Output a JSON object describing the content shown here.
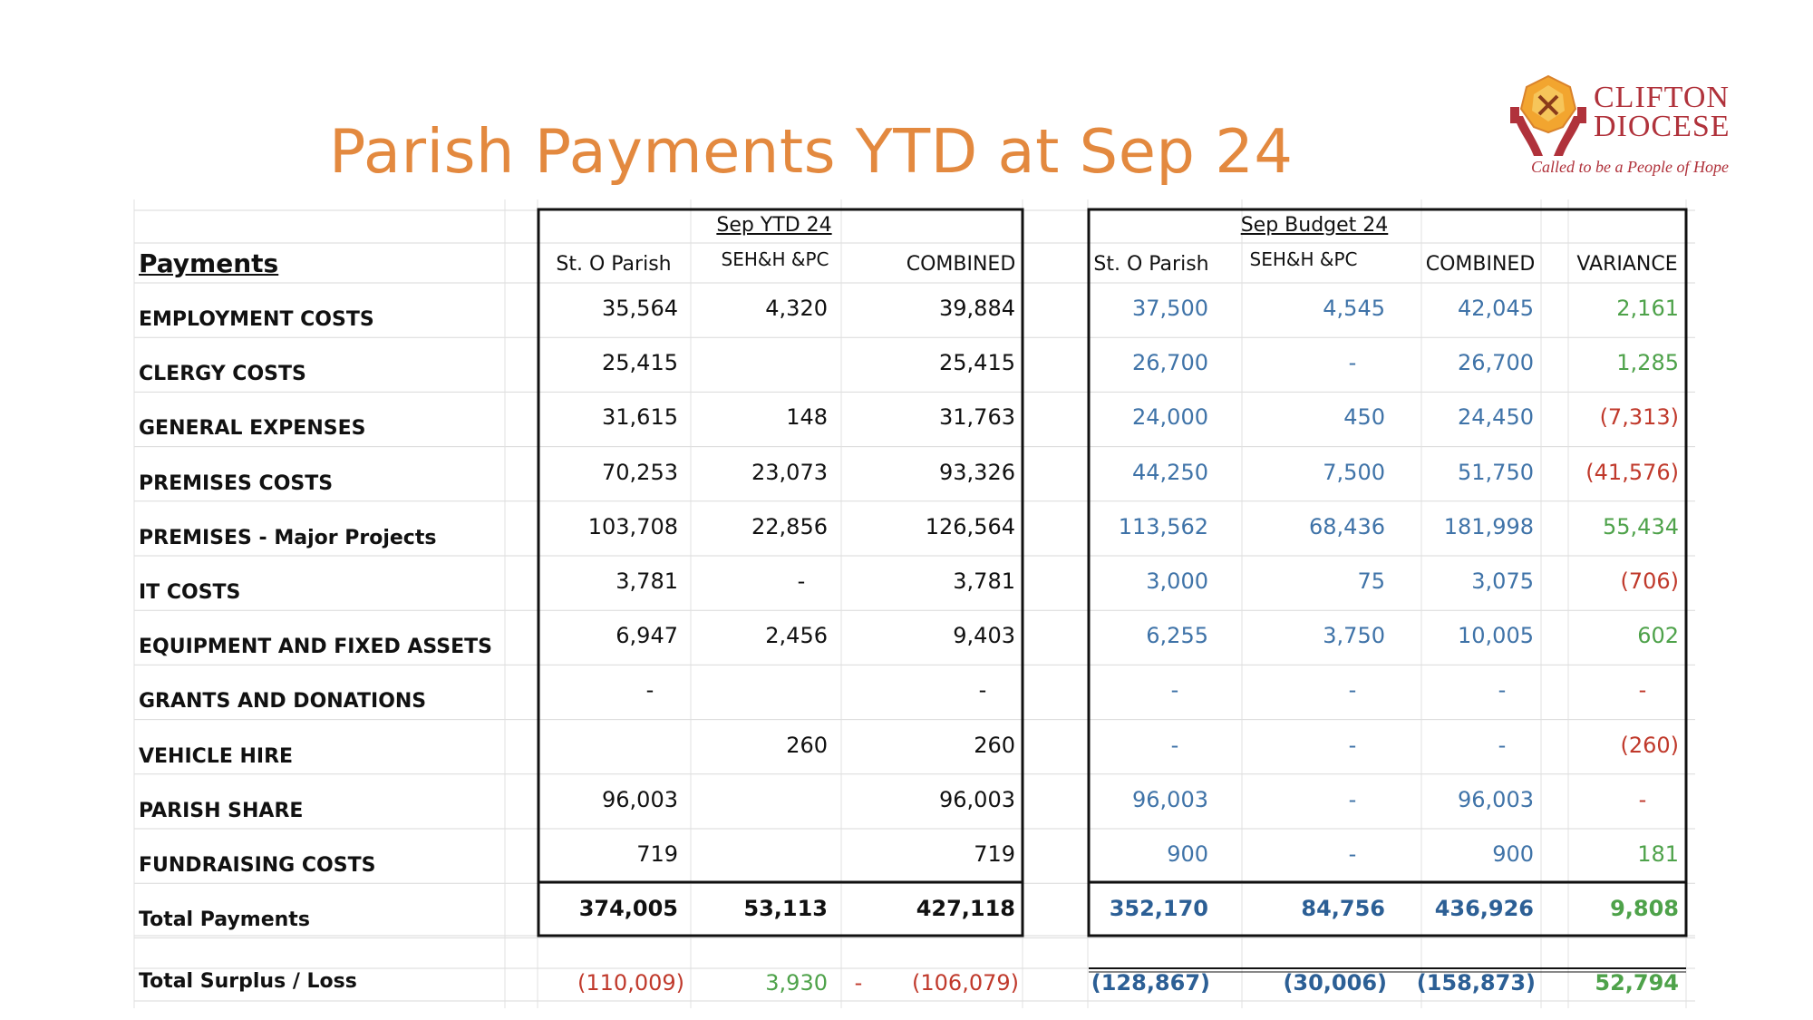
{
  "title": "Parish Payments YTD at Sep 24",
  "logo": {
    "line1": "CLIFTON",
    "line2": "DIOCESE",
    "tagline": "Called to be a People of Hope"
  },
  "colors": {
    "title": "#e3893f",
    "actual": "#111111",
    "budget": "#3f73a8",
    "positive": "#4ea24a",
    "negative": "#c0392b",
    "logo": "#b0323b"
  },
  "table": {
    "section_label": "Payments",
    "group_headers": {
      "ytd": "Sep YTD 24",
      "budget": "Sep Budget 24"
    },
    "column_headers": {
      "ytd_st_o": "St. O Parish",
      "ytd_seh": "SEH&H &PC",
      "ytd_combined": "COMBINED",
      "bud_st_o": "St. O Parish",
      "bud_seh": "SEH&H &PC",
      "bud_combined": "COMBINED",
      "variance": "VARIANCE"
    },
    "rows": [
      {
        "label": "EMPLOYMENT COSTS",
        "ytd_st_o": "35,564",
        "ytd_seh": "4,320",
        "ytd_combined": "39,884",
        "bud_st_o": "37,500",
        "bud_seh": "4,545",
        "bud_combined": "42,045",
        "variance": "2,161",
        "variance_sign": "pos"
      },
      {
        "label": "CLERGY COSTS",
        "ytd_st_o": "25,415",
        "ytd_seh": "",
        "ytd_combined": "25,415",
        "bud_st_o": "26,700",
        "bud_seh": "-",
        "bud_combined": "26,700",
        "variance": "1,285",
        "variance_sign": "pos"
      },
      {
        "label": "GENERAL EXPENSES",
        "ytd_st_o": "31,615",
        "ytd_seh": "148",
        "ytd_combined": "31,763",
        "bud_st_o": "24,000",
        "bud_seh": "450",
        "bud_combined": "24,450",
        "variance": "(7,313)",
        "variance_sign": "neg"
      },
      {
        "label": "PREMISES COSTS",
        "ytd_st_o": "70,253",
        "ytd_seh": "23,073",
        "ytd_combined": "93,326",
        "bud_st_o": "44,250",
        "bud_seh": "7,500",
        "bud_combined": "51,750",
        "variance": "(41,576)",
        "variance_sign": "neg"
      },
      {
        "label": "PREMISES - Major Projects",
        "ytd_st_o": "103,708",
        "ytd_seh": "22,856",
        "ytd_combined": "126,564",
        "bud_st_o": "113,562",
        "bud_seh": "68,436",
        "bud_combined": "181,998",
        "variance": "55,434",
        "variance_sign": "pos"
      },
      {
        "label": "IT COSTS",
        "ytd_st_o": "3,781",
        "ytd_seh": "-",
        "ytd_combined": "3,781",
        "bud_st_o": "3,000",
        "bud_seh": "75",
        "bud_combined": "3,075",
        "variance": "(706)",
        "variance_sign": "neg"
      },
      {
        "label": "EQUIPMENT AND FIXED ASSETS",
        "ytd_st_o": "6,947",
        "ytd_seh": "2,456",
        "ytd_combined": "9,403",
        "bud_st_o": "6,255",
        "bud_seh": "3,750",
        "bud_combined": "10,005",
        "variance": "602",
        "variance_sign": "pos"
      },
      {
        "label": "GRANTS AND DONATIONS",
        "ytd_st_o": "-",
        "ytd_seh": "",
        "ytd_combined": "-",
        "bud_st_o": "-",
        "bud_seh": "-",
        "bud_combined": "-",
        "variance": "-",
        "variance_sign": "neg"
      },
      {
        "label": "VEHICLE HIRE",
        "ytd_st_o": "",
        "ytd_seh": "260",
        "ytd_combined": "260",
        "bud_st_o": "-",
        "bud_seh": "-",
        "bud_combined": "-",
        "variance": "(260)",
        "variance_sign": "neg"
      },
      {
        "label": "PARISH SHARE",
        "ytd_st_o": "96,003",
        "ytd_seh": "",
        "ytd_combined": "96,003",
        "bud_st_o": "96,003",
        "bud_seh": "-",
        "bud_combined": "96,003",
        "variance": "-",
        "variance_sign": "neg"
      },
      {
        "label": "FUNDRAISING COSTS",
        "ytd_st_o": "719",
        "ytd_seh": "",
        "ytd_combined": "719",
        "bud_st_o": "900",
        "bud_seh": "-",
        "bud_combined": "900",
        "variance": "181",
        "variance_sign": "pos"
      }
    ],
    "total": {
      "label": "Total Payments",
      "ytd_st_o": "374,005",
      "ytd_seh": "53,113",
      "ytd_combined": "427,118",
      "bud_st_o": "352,170",
      "bud_seh": "84,756",
      "bud_combined": "436,926",
      "variance": "9,808",
      "variance_sign": "pos"
    },
    "surplus": {
      "label": "Total Surplus / Loss",
      "ytd_st_o": "(110,009)",
      "ytd_st_o_sign": "neg",
      "ytd_seh": "3,930",
      "ytd_seh_sign": "pos",
      "ytd_gap": "-",
      "ytd_gap_sign": "neg",
      "ytd_combined": "(106,079)",
      "ytd_combined_sign": "neg",
      "bud_st_o": "(128,867)",
      "bud_seh": "(30,006)",
      "bud_combined": "(158,873)",
      "variance": "52,794",
      "variance_sign": "pos"
    }
  }
}
